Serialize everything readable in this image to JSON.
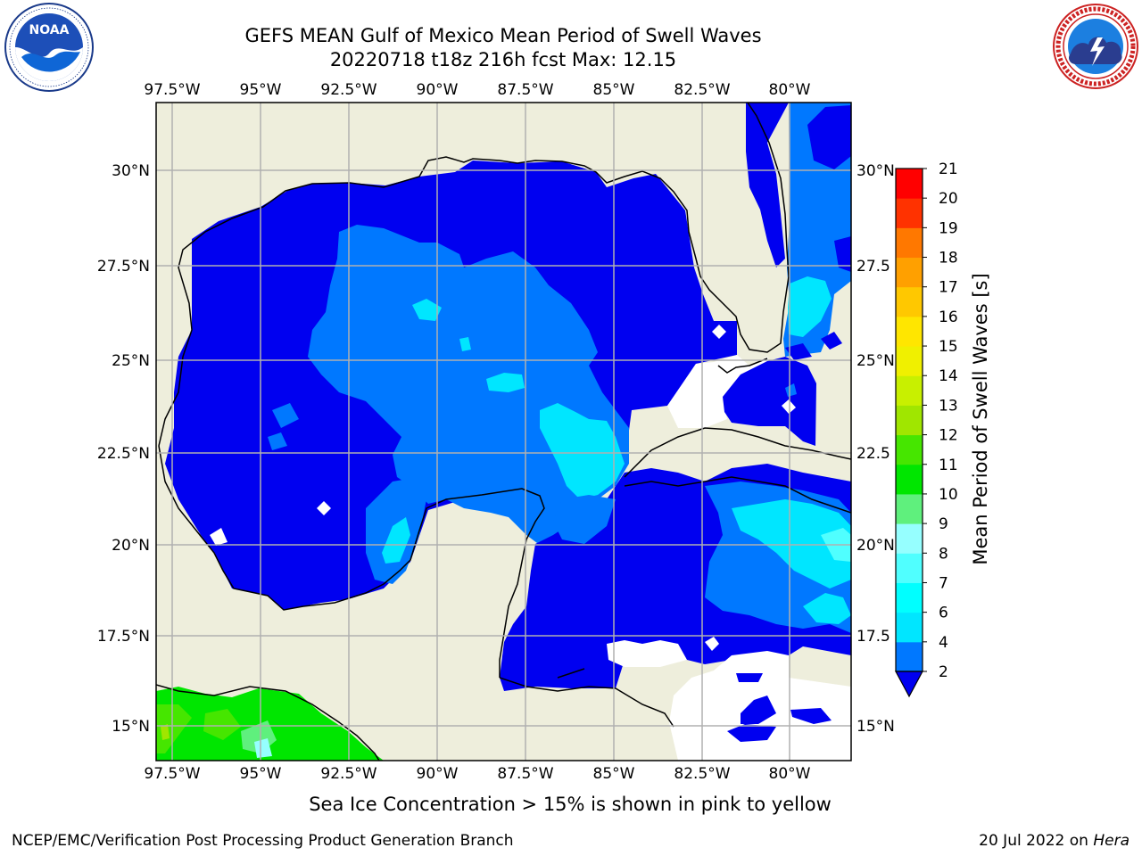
{
  "header": {
    "title_line1": "GEFS MEAN Gulf of Mexico Mean Period of Swell Waves",
    "title_line2": "20220718 t18z 216h fcst   Max: 12.15"
  },
  "logos": {
    "left": {
      "name": "noaa-logo",
      "text": "NOAA",
      "ring_text": "NATIONAL OCEANIC AND ATMOSPHERIC ADMINISTRATION · U.S. DEPARTMENT OF COMMERCE"
    },
    "right": {
      "name": "nws-logo",
      "ring_text": "NATIONAL WEATHER SERVICE"
    }
  },
  "map": {
    "lon_ticks": [
      "97.5°W",
      "95°W",
      "92.5°W",
      "90°W",
      "87.5°W",
      "85°W",
      "82.5°W",
      "80°W"
    ],
    "lat_ticks_left": [
      "30°N",
      "27.5°N",
      "25°N",
      "22.5°N",
      "20°N",
      "17.5°N",
      "15°N"
    ],
    "lat_ticks_right": [
      "30°N",
      "27.5",
      "25°N",
      "22.5",
      "20°N",
      "17.5",
      "15°N"
    ],
    "colors": {
      "land": "#eeeedc",
      "ocean_nodata": "#ffffff",
      "grid": "#b0b0b0"
    }
  },
  "colorbar": {
    "label": "Mean Period of Swell Waves [s]",
    "ticks": [
      "21",
      "20",
      "19",
      "18",
      "17",
      "16",
      "15",
      "14",
      "13",
      "12",
      "11",
      "10",
      "9",
      "8",
      "7",
      "6",
      "4",
      "2"
    ],
    "levels": [
      2,
      4,
      6,
      7,
      8,
      9,
      10,
      11,
      12,
      13,
      14,
      15,
      16,
      17,
      18,
      19,
      20,
      21
    ],
    "colors": [
      "#0000f0",
      "#0078ff",
      "#00e6ff",
      "#00ffff",
      "#50ffff",
      "#96ffff",
      "#5ff07d",
      "#00e600",
      "#46e600",
      "#a0e600",
      "#c8f000",
      "#f0f000",
      "#ffe600",
      "#ffc800",
      "#ffa000",
      "#ff7800",
      "#ff3200",
      "#ff0000"
    ],
    "under_color": "#0000f0"
  },
  "notes": {
    "ice": "Sea Ice Concentration > 15% is shown in pink to yellow",
    "footer_left": "NCEP/EMC/Verification Post Processing Product Generation Branch",
    "footer_date": "20 Jul 2022 on ",
    "footer_host": "Hera"
  }
}
